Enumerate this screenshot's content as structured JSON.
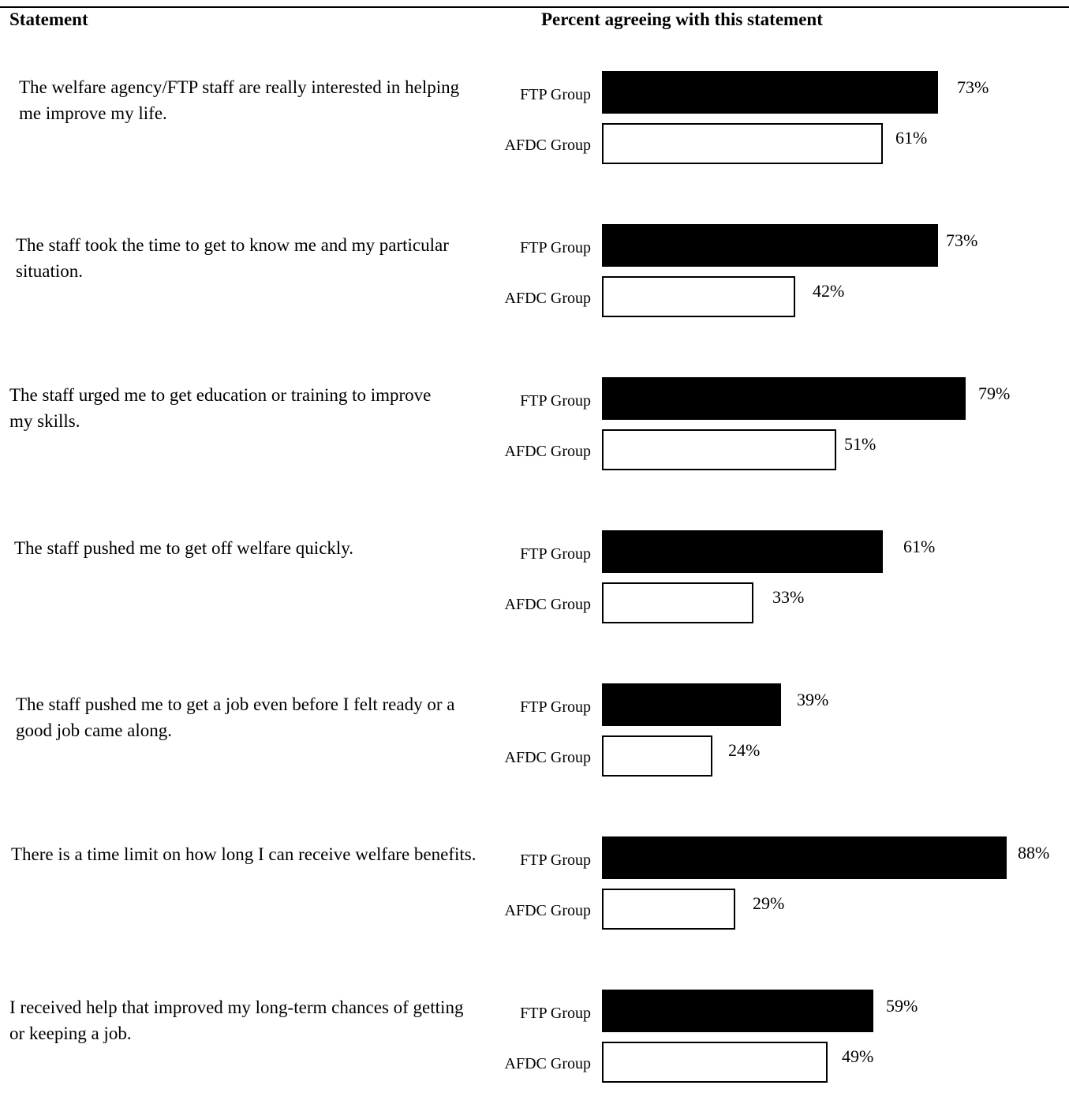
{
  "header": {
    "statement_label": "Statement",
    "percent_label": "Percent agreeing with this statement"
  },
  "colors": {
    "ftp": "#000000",
    "afdc": "#ffffff",
    "outline": "#000000"
  },
  "chart_data": {
    "type": "bar",
    "orientation": "horizontal",
    "grid": false,
    "xlim": [
      0,
      100
    ],
    "series": [
      {
        "name": "FTP Group",
        "values": [
          73,
          73,
          79,
          61,
          39,
          88,
          59
        ]
      },
      {
        "name": "AFDC Group",
        "values": [
          61,
          42,
          51,
          33,
          24,
          29,
          49
        ]
      }
    ],
    "value_labels": [
      {
        "ftp": "73%",
        "afdc": "61%"
      },
      {
        "ftp": "73%",
        "afdc": "42%"
      },
      {
        "ftp": "79%",
        "afdc": "51%"
      },
      {
        "ftp": "61%",
        "afdc": "33%"
      },
      {
        "ftp": "39%",
        "afdc": "24%"
      },
      {
        "ftp": "88%",
        "afdc": "29%"
      },
      {
        "ftp": "59%",
        "afdc": "49%"
      }
    ],
    "categories": [
      "The welfare agency/FTP staff are really interested in helping me improve my life.",
      "The staff took the time to get to know me and my particular situation.",
      "The staff urged me to get education or training to improve my skills.",
      "The staff  pushed me to get off welfare quickly.",
      "The staff pushed me to get a job even before I felt ready or a good job came along.",
      "There is a time limit on how long I can receive welfare benefits.",
      "I received help that improved my long-term chances of getting or keeping a job."
    ]
  }
}
